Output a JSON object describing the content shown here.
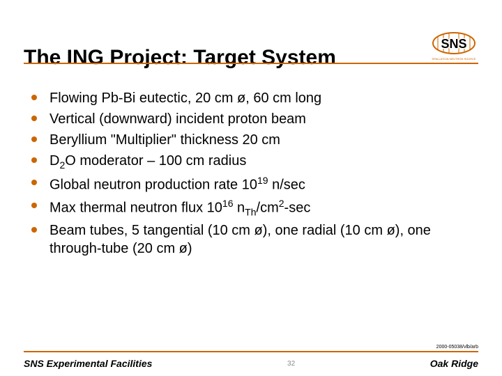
{
  "title": "The ING Project: Target System",
  "accent_color": "#cc6600",
  "rule_color": "#cc6600",
  "bullet_color": "#cc6600",
  "logo": {
    "top_text": "SNS",
    "bottom_text": "SPALLATION NEUTRON SOURCE",
    "bg": "#ffffff",
    "stroke": "#cc6600",
    "text_color": "#000000"
  },
  "bullets": [
    "Flowing Pb-Bi eutectic, 20 cm ø, 60 cm long",
    "Vertical (downward) incident proton beam",
    "Beryllium \"Multiplier\" thickness 20 cm",
    "D<sub>2</sub>O moderator – 100 cm radius",
    "Global neutron production rate 10<sup>19</sup> n/sec",
    "Max thermal neutron flux 10<sup>16</sup> n<sub>Th</sub>/cm<sup>2</sup>-sec",
    "Beam tubes, 5 tangential (10 cm ø), one radial (10 cm ø), one through-tube (20 cm ø)"
  ],
  "doc_id": "2000-05038/vlb/arb",
  "footer": {
    "left": "SNS Experimental Facilities",
    "right": "Oak Ridge",
    "page": "32"
  }
}
